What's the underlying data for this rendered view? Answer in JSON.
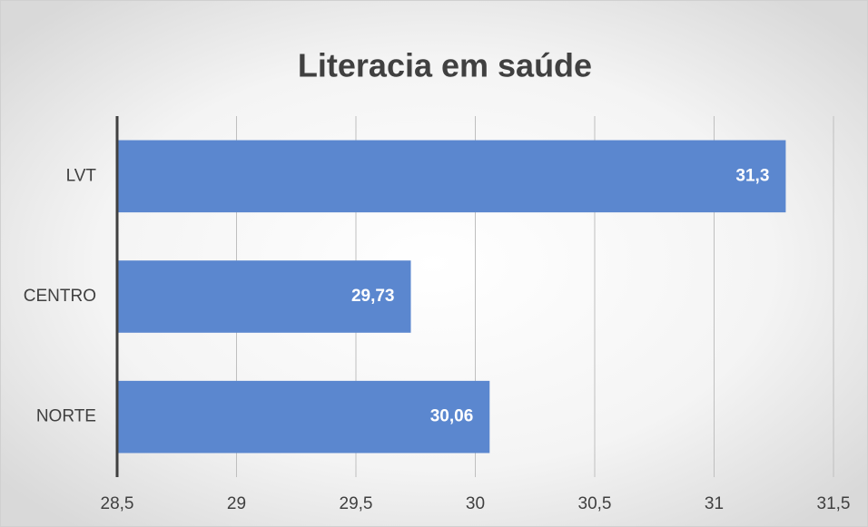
{
  "chart_data": {
    "type": "barh",
    "title": "Literacia em saúde",
    "categories": [
      "LVT",
      "CENTRO",
      "NORTE"
    ],
    "values": [
      31.3,
      29.73,
      30.06
    ],
    "value_labels": [
      "31,3",
      "29,73",
      "30,06"
    ],
    "color": "#5b87cf",
    "xlim": [
      28.5,
      31.5
    ],
    "xticks": [
      {
        "value": 28.5,
        "label": "28,5"
      },
      29,
      {
        "value": 29.5,
        "label": "29,5"
      },
      30,
      {
        "value": 30.5,
        "label": "30,5"
      },
      31,
      {
        "value": 31.5,
        "label": "31,5"
      }
    ],
    "grid": true
  }
}
